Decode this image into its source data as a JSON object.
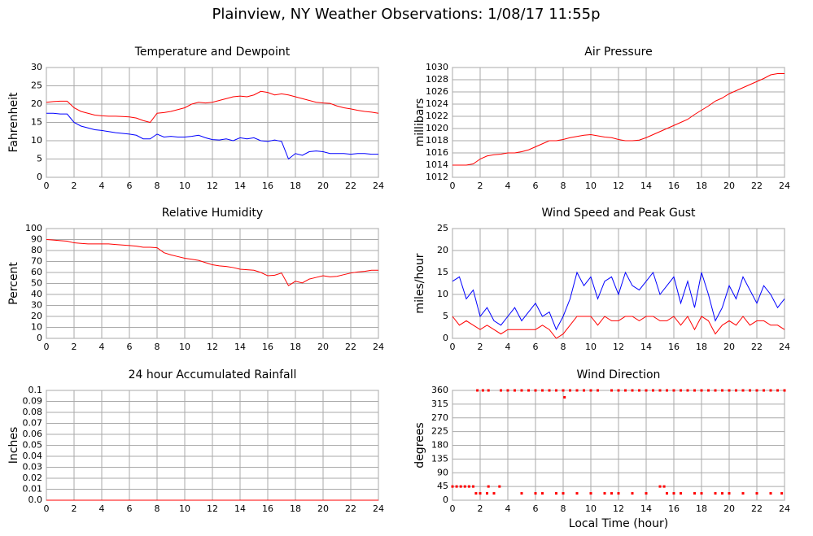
{
  "title": "Plainview, NY Weather Observations: 1/08/17 11:55p",
  "chart_data": [
    {
      "type": "line",
      "title": "Temperature and Dewpoint",
      "ylabel": "Fahrenheit",
      "x": [
        0,
        0.5,
        1,
        1.5,
        2,
        2.5,
        3,
        3.5,
        4,
        4.5,
        5,
        5.5,
        6,
        6.5,
        7,
        7.5,
        8,
        8.5,
        9,
        9.5,
        10,
        10.5,
        11,
        11.5,
        12,
        12.5,
        13,
        13.5,
        14,
        14.5,
        15,
        15.5,
        16,
        16.5,
        17,
        17.5,
        18,
        18.5,
        19,
        19.5,
        20,
        20.5,
        21,
        21.5,
        22,
        22.5,
        23,
        23.5,
        24
      ],
      "xlim": [
        0,
        24
      ],
      "xticks": [
        0,
        2,
        4,
        6,
        8,
        10,
        12,
        14,
        16,
        18,
        20,
        22,
        24
      ],
      "ylim": [
        0,
        30
      ],
      "yticks": [
        0,
        5,
        10,
        15,
        20,
        25,
        30
      ],
      "grid": true,
      "series": [
        {
          "color": "#ff0000",
          "values": [
            20.5,
            20.7,
            20.8,
            20.8,
            19,
            18,
            17.5,
            17,
            16.8,
            16.7,
            16.7,
            16.6,
            16.5,
            16.2,
            15.5,
            15,
            17.5,
            17.7,
            18,
            18.5,
            19,
            20,
            20.5,
            20.3,
            20.5,
            21,
            21.5,
            22,
            22.2,
            22,
            22.5,
            23.5,
            23.2,
            22.5,
            22.8,
            22.5,
            22,
            21.5,
            21,
            20.5,
            20.3,
            20.2,
            19.5,
            19,
            18.7,
            18.3,
            18,
            17.8,
            17.5
          ]
        },
        {
          "color": "#0000ff",
          "values": [
            17.5,
            17.5,
            17.3,
            17.3,
            15,
            14,
            13.5,
            13,
            12.8,
            12.5,
            12.2,
            12,
            11.8,
            11.5,
            10.5,
            10.5,
            11.8,
            11,
            11.2,
            11,
            11,
            11.2,
            11.5,
            10.8,
            10.3,
            10.2,
            10.5,
            10,
            10.8,
            10.5,
            10.8,
            10,
            9.8,
            10.2,
            9.8,
            5,
            6.5,
            6,
            7,
            7.2,
            7,
            6.5,
            6.5,
            6.5,
            6.3,
            6.5,
            6.5,
            6.3,
            6.3
          ]
        }
      ]
    },
    {
      "type": "line",
      "title": "Air Pressure",
      "ylabel": "millibars",
      "x": [
        0,
        0.5,
        1,
        1.5,
        2,
        2.5,
        3,
        3.5,
        4,
        4.5,
        5,
        5.5,
        6,
        6.5,
        7,
        7.5,
        8,
        8.5,
        9,
        9.5,
        10,
        10.5,
        11,
        11.5,
        12,
        12.5,
        13,
        13.5,
        14,
        14.5,
        15,
        15.5,
        16,
        16.5,
        17,
        17.5,
        18,
        18.5,
        19,
        19.5,
        20,
        20.5,
        21,
        21.5,
        22,
        22.5,
        23,
        23.5,
        24
      ],
      "xlim": [
        0,
        24
      ],
      "xticks": [
        0,
        2,
        4,
        6,
        8,
        10,
        12,
        14,
        16,
        18,
        20,
        22,
        24
      ],
      "ylim": [
        1012,
        1030
      ],
      "yticks": [
        1012,
        1014,
        1016,
        1018,
        1020,
        1022,
        1024,
        1026,
        1028,
        1030
      ],
      "grid": true,
      "series": [
        {
          "color": "#ff0000",
          "values": [
            1014,
            1014,
            1014,
            1014.2,
            1015,
            1015.5,
            1015.7,
            1015.8,
            1016,
            1016,
            1016.2,
            1016.5,
            1017,
            1017.5,
            1018,
            1018,
            1018.2,
            1018.5,
            1018.7,
            1018.9,
            1019,
            1018.8,
            1018.6,
            1018.5,
            1018.2,
            1018,
            1018,
            1018.1,
            1018.5,
            1019,
            1019.5,
            1020,
            1020.5,
            1021,
            1021.5,
            1022.3,
            1023,
            1023.7,
            1024.5,
            1025,
            1025.7,
            1026.2,
            1026.7,
            1027.2,
            1027.7,
            1028.2,
            1028.8,
            1029,
            1029
          ]
        }
      ]
    },
    {
      "type": "line",
      "title": "Relative Humidity",
      "ylabel": "Percent",
      "x": [
        0,
        0.5,
        1,
        1.5,
        2,
        2.5,
        3,
        3.5,
        4,
        4.5,
        5,
        5.5,
        6,
        6.5,
        7,
        7.5,
        8,
        8.5,
        9,
        9.5,
        10,
        10.5,
        11,
        11.5,
        12,
        12.5,
        13,
        13.5,
        14,
        14.5,
        15,
        15.5,
        16,
        16.5,
        17,
        17.5,
        18,
        18.5,
        19,
        19.5,
        20,
        20.5,
        21,
        21.5,
        22,
        22.5,
        23,
        23.5,
        24
      ],
      "xlim": [
        0,
        24
      ],
      "xticks": [
        0,
        2,
        4,
        6,
        8,
        10,
        12,
        14,
        16,
        18,
        20,
        22,
        24
      ],
      "ylim": [
        0,
        100
      ],
      "yticks": [
        0,
        10,
        20,
        30,
        40,
        50,
        60,
        70,
        80,
        90,
        100
      ],
      "grid": true,
      "series": [
        {
          "color": "#ff0000",
          "values": [
            90,
            89.5,
            89,
            88.5,
            87,
            86.5,
            86,
            86,
            86,
            86,
            85.5,
            85,
            84.5,
            84,
            83,
            83,
            82.5,
            78,
            76,
            74.5,
            73,
            72,
            71,
            69,
            67,
            66,
            65.5,
            64.5,
            63,
            62.5,
            62,
            60,
            57,
            57.5,
            59.5,
            48,
            52,
            50.5,
            54,
            55.5,
            57,
            56,
            56.5,
            58,
            59.5,
            60.5,
            61,
            62,
            62
          ]
        }
      ]
    },
    {
      "type": "line",
      "title": "Wind Speed and Peak Gust",
      "ylabel": "miles/hour",
      "x": [
        0,
        0.5,
        1,
        1.5,
        2,
        2.5,
        3,
        3.5,
        4,
        4.5,
        5,
        5.5,
        6,
        6.5,
        7,
        7.5,
        8,
        8.5,
        9,
        9.5,
        10,
        10.5,
        11,
        11.5,
        12,
        12.5,
        13,
        13.5,
        14,
        14.5,
        15,
        15.5,
        16,
        16.5,
        17,
        17.5,
        18,
        18.5,
        19,
        19.5,
        20,
        20.5,
        21,
        21.5,
        22,
        22.5,
        23,
        23.5,
        24
      ],
      "xlim": [
        0,
        24
      ],
      "xticks": [
        0,
        2,
        4,
        6,
        8,
        10,
        12,
        14,
        16,
        18,
        20,
        22,
        24
      ],
      "ylim": [
        0,
        25
      ],
      "yticks": [
        0,
        5,
        10,
        15,
        20,
        25
      ],
      "grid": true,
      "series": [
        {
          "color": "#0000ff",
          "values": [
            13,
            14,
            9,
            11,
            5,
            7,
            4,
            3,
            5,
            7,
            4,
            6,
            8,
            5,
            6,
            2,
            5,
            9,
            15,
            12,
            14,
            9,
            13,
            14,
            10,
            15,
            12,
            11,
            13,
            15,
            10,
            12,
            14,
            8,
            13,
            7,
            15,
            10,
            4,
            7,
            12,
            9,
            14,
            11,
            8,
            12,
            10,
            7,
            9
          ]
        },
        {
          "color": "#ff0000",
          "values": [
            5,
            3,
            4,
            3,
            2,
            3,
            2,
            1,
            2,
            2,
            2,
            2,
            2,
            3,
            2,
            0,
            1,
            3,
            5,
            5,
            5,
            3,
            5,
            4,
            4,
            5,
            5,
            4,
            5,
            5,
            4,
            4,
            5,
            3,
            5,
            2,
            5,
            4,
            1,
            3,
            4,
            3,
            5,
            3,
            4,
            4,
            3,
            3,
            2
          ]
        }
      ]
    },
    {
      "type": "line",
      "title": "24 hour Accumulated Rainfall",
      "ylabel": "Inches",
      "x": [
        0,
        24
      ],
      "xlim": [
        0,
        24
      ],
      "xticks": [
        0,
        2,
        4,
        6,
        8,
        10,
        12,
        14,
        16,
        18,
        20,
        22,
        24
      ],
      "ylim": [
        0,
        0.1
      ],
      "yticks": [
        {
          "value": 0,
          "label": "0.0"
        },
        0.01,
        0.02,
        0.03,
        0.04,
        0.05,
        0.06,
        0.07,
        0.08,
        0.09,
        0.1
      ],
      "grid": true,
      "series": [
        {
          "color": "#ff0000",
          "values": [
            0,
            0
          ]
        }
      ]
    },
    {
      "type": "scatter",
      "title": "Wind Direction",
      "ylabel": "degrees",
      "xlabel": "Local Time (hour)",
      "x": [
        0,
        0.3,
        0.6,
        0.9,
        1.2,
        1.5,
        1.8,
        2.2,
        2.6,
        3.5,
        4,
        4.5,
        5,
        5.5,
        6,
        6.5,
        7,
        7.5,
        8,
        8.5,
        9,
        9.5,
        10,
        10.5,
        11.5,
        12,
        12.5,
        13,
        13.5,
        14,
        14.5,
        15,
        15.5,
        16,
        16.5,
        17,
        17.5,
        18,
        18.5,
        19,
        19.5,
        20,
        20.5,
        21,
        21.5,
        22,
        22.5,
        23,
        23.5,
        24,
        1.7,
        2,
        2.5,
        3,
        5,
        6,
        6.5,
        7.5,
        8,
        9,
        10,
        11,
        11.5,
        12,
        13,
        14,
        15.5,
        16,
        16.5,
        17.5,
        18,
        19,
        19.5,
        20,
        21,
        22,
        23,
        23.8,
        2.6,
        3.4,
        15,
        15.3,
        8.1
      ],
      "values": [
        45,
        45,
        45,
        45,
        45,
        45,
        360,
        360,
        360,
        360,
        360,
        360,
        360,
        360,
        360,
        360,
        360,
        360,
        360,
        360,
        360,
        360,
        360,
        360,
        360,
        360,
        360,
        360,
        360,
        360,
        360,
        360,
        360,
        360,
        360,
        360,
        360,
        360,
        360,
        360,
        360,
        360,
        360,
        360,
        360,
        360,
        360,
        360,
        360,
        360,
        22.5,
        22.5,
        22.5,
        22.5,
        22.5,
        22.5,
        22.5,
        22.5,
        22.5,
        22.5,
        22.5,
        22.5,
        22.5,
        22.5,
        22.5,
        22.5,
        22.5,
        22.5,
        22.5,
        22.5,
        22.5,
        22.5,
        22.5,
        22.5,
        22.5,
        22.5,
        22.5,
        22.5,
        45,
        45,
        45,
        45,
        337.5
      ],
      "color": "#ff0000",
      "xlim": [
        0,
        24
      ],
      "xticks": [
        0,
        2,
        4,
        6,
        8,
        10,
        12,
        14,
        16,
        18,
        20,
        22,
        24
      ],
      "ylim": [
        0,
        360
      ],
      "yticks": [
        0,
        45,
        90,
        135,
        180,
        225,
        270,
        315,
        360
      ],
      "grid": true
    }
  ]
}
